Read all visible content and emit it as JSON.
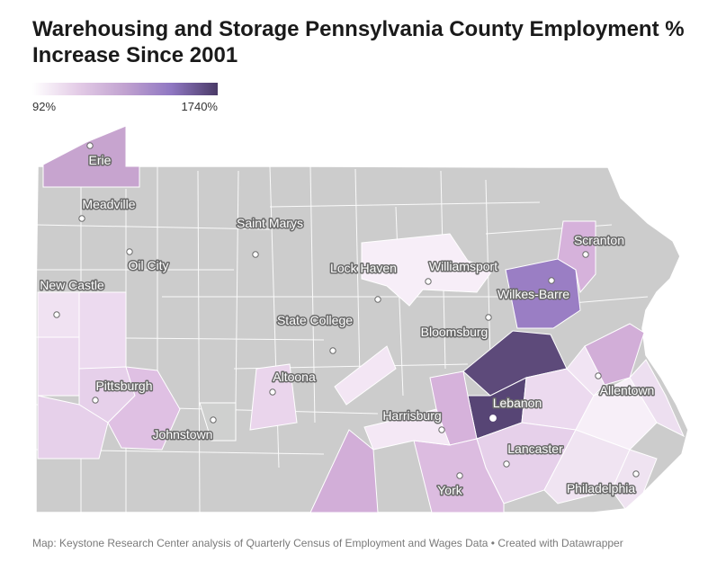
{
  "title": "Warehousing and Storage Pennsylvania County Employment % Increase Since 2001",
  "legend": {
    "min_label": "92%",
    "max_label": "1740%",
    "min_value": 92,
    "max_value": 1740,
    "gradient_colors": [
      "#ffffff",
      "#e3cbe6",
      "#c1a2d0",
      "#8f77c2",
      "#4a3a67"
    ]
  },
  "colors": {
    "no_data": "#cccccc",
    "border": "#ffffff",
    "city_dot": "#ffffff"
  },
  "cities": [
    {
      "name": "Erie"
    },
    {
      "name": "Meadville"
    },
    {
      "name": "Saint Marys"
    },
    {
      "name": "Oil City"
    },
    {
      "name": "New Castle"
    },
    {
      "name": "Lock Haven"
    },
    {
      "name": "Williamsport"
    },
    {
      "name": "Scranton"
    },
    {
      "name": "Wilkes-Barre"
    },
    {
      "name": "State College"
    },
    {
      "name": "Bloomsburg"
    },
    {
      "name": "Pittsburgh"
    },
    {
      "name": "Altoona"
    },
    {
      "name": "Allentown"
    },
    {
      "name": "Lebanon"
    },
    {
      "name": "Johnstown"
    },
    {
      "name": "Harrisburg"
    },
    {
      "name": "Lancaster"
    },
    {
      "name": "York"
    },
    {
      "name": "Philadelphia"
    }
  ],
  "footer": "Map: Keystone Research Center analysis of Quarterly Census of Employment and Wages Data • Created with Datawrapper"
}
